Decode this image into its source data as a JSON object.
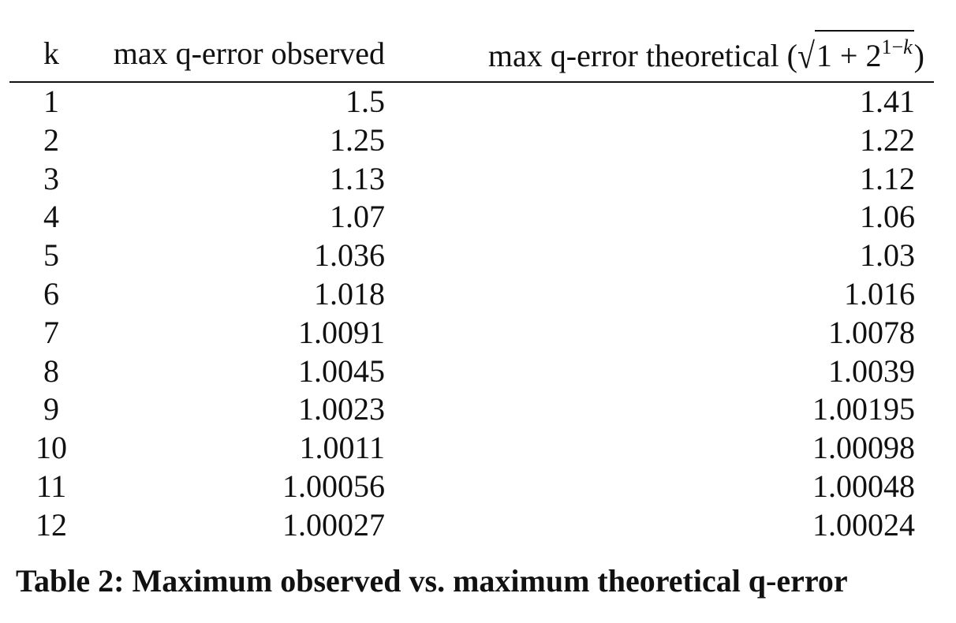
{
  "table": {
    "headers": {
      "k": "k",
      "observed": "max q-error observed",
      "theoretical_prefix": "max q-error theoretical (",
      "theoretical_formula_base": "1 + 2",
      "theoretical_formula_exp_pre": "1−",
      "theoretical_formula_exp_var": "k",
      "theoretical_suffix": ")"
    },
    "rows": [
      {
        "k": "1",
        "observed": "1.5",
        "theoretical": "1.41"
      },
      {
        "k": "2",
        "observed": "1.25",
        "theoretical": "1.22"
      },
      {
        "k": "3",
        "observed": "1.13",
        "theoretical": "1.12"
      },
      {
        "k": "4",
        "observed": "1.07",
        "theoretical": "1.06"
      },
      {
        "k": "5",
        "observed": "1.036",
        "theoretical": "1.03"
      },
      {
        "k": "6",
        "observed": "1.018",
        "theoretical": "1.016"
      },
      {
        "k": "7",
        "observed": "1.0091",
        "theoretical": "1.0078"
      },
      {
        "k": "8",
        "observed": "1.0045",
        "theoretical": "1.0039"
      },
      {
        "k": "9",
        "observed": "1.0023",
        "theoretical": "1.00195"
      },
      {
        "k": "10",
        "observed": "1.0011",
        "theoretical": "1.00098"
      },
      {
        "k": "11",
        "observed": "1.00056",
        "theoretical": "1.00048"
      },
      {
        "k": "12",
        "observed": "1.00027",
        "theoretical": "1.00024"
      }
    ]
  },
  "caption": "Table 2: Maximum observed vs. maximum theoretical q-error"
}
